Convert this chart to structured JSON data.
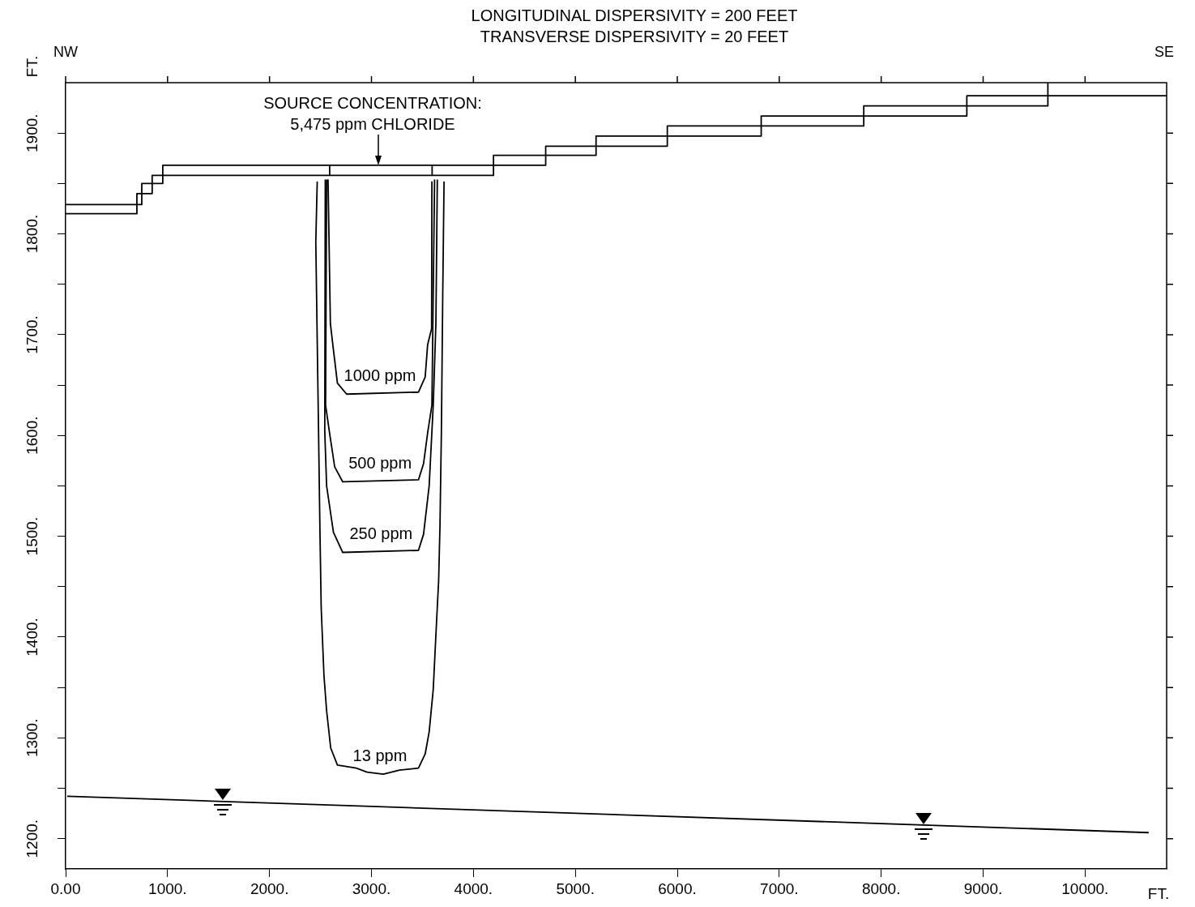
{
  "chart_data": {
    "type": "line",
    "title": "LONGITUDINAL DISPERSIVITY = 200 FEET",
    "subtitle": "TRANSVERSE DISPERSIVITY = 20 FEET",
    "xlabel": "FT.",
    "ylabel": "FT.",
    "xlim": [
      0,
      10800
    ],
    "ylim": [
      1170,
      1950
    ],
    "xticks": [
      {
        "value": 0,
        "label": "0.00"
      },
      {
        "value": 1000,
        "label": "1000."
      },
      {
        "value": 2000,
        "label": "2000."
      },
      {
        "value": 3000,
        "label": "3000."
      },
      {
        "value": 4000,
        "label": "4000."
      },
      {
        "value": 5000,
        "label": "5000."
      },
      {
        "value": 6000,
        "label": "6000."
      },
      {
        "value": 7000,
        "label": "7000."
      },
      {
        "value": 8000,
        "label": "8000."
      },
      {
        "value": 9000,
        "label": "9000."
      },
      {
        "value": 10000,
        "label": "10000."
      }
    ],
    "yticks": [
      {
        "value": 1200,
        "label": "1200."
      },
      {
        "value": 1250,
        "label": null
      },
      {
        "value": 1300,
        "label": "1300."
      },
      {
        "value": 1350,
        "label": null
      },
      {
        "value": 1400,
        "label": "1400."
      },
      {
        "value": 1450,
        "label": null
      },
      {
        "value": 1500,
        "label": "1500."
      },
      {
        "value": 1550,
        "label": null
      },
      {
        "value": 1600,
        "label": "1600."
      },
      {
        "value": 1650,
        "label": null
      },
      {
        "value": 1700,
        "label": "1700."
      },
      {
        "value": 1750,
        "label": null
      },
      {
        "value": 1800,
        "label": "1800."
      },
      {
        "value": 1850,
        "label": null
      },
      {
        "value": 1900,
        "label": "1900."
      }
    ],
    "grid": false,
    "legend": false,
    "marker": "none",
    "line_style": "solid",
    "series": [
      {
        "color": "#000000",
        "x": [
          0,
          747,
          747,
          953,
          953,
          4197,
          4197,
          4709,
          4709,
          5203,
          5203,
          5902,
          5902,
          6823,
          6823,
          7829,
          7829,
          8840,
          8840,
          9635,
          9635
        ],
        "values": [
          1829,
          1829,
          1850,
          1850,
          1868,
          1868,
          1878,
          1878,
          1887,
          1887,
          1897,
          1897,
          1907,
          1907,
          1917,
          1917,
          1927,
          1927,
          1937,
          1937,
          1950
        ]
      },
      {
        "color": "#000000",
        "x": [
          0,
          699,
          699,
          849,
          849,
          4197,
          4197,
          4709,
          4709,
          5203,
          5203,
          5902,
          5902,
          6823,
          6823,
          7829,
          7829,
          8840,
          8840,
          9635,
          9635,
          10800
        ],
        "values": [
          1820,
          1820,
          1840,
          1840,
          1858,
          1858,
          1868,
          1868,
          1878,
          1878,
          1887,
          1887,
          1897,
          1897,
          1907,
          1907,
          1917,
          1917,
          1927,
          1927,
          1937,
          1937
        ]
      },
      {
        "color": "#000000",
        "x": [
          2590,
          2590,
          3066,
          3595,
          3595
        ],
        "values": [
          1858,
          1868,
          null,
          1858,
          1868
        ]
      },
      {
        "name": "1000 ppm",
        "color": "#000000",
        "x": [
          2574,
          2597,
          2627,
          2666,
          2756,
          3461,
          3527,
          3551,
          3590,
          3593
        ],
        "values": [
          1854,
          1711,
          1685,
          1652,
          1641,
          1643,
          1658,
          1690,
          1706,
          1852
        ]
      },
      {
        "name": "500 ppm",
        "color": "#000000",
        "x": [
          2560,
          2550,
          2587,
          2639,
          2718,
          3461,
          3511,
          3553,
          3593,
          3619
        ],
        "values": [
          1854,
          1630,
          1604,
          1569,
          1554,
          1556,
          1572,
          1604,
          1630,
          1854
        ]
      },
      {
        "name": "250 ppm",
        "color": "#000000",
        "x": [
          2547,
          2542,
          2560,
          2627,
          2718,
          3461,
          3511,
          3566,
          3606,
          3632,
          3646
        ],
        "values": [
          1854,
          1604,
          1550,
          1504,
          1484,
          1486,
          1502,
          1550,
          1630,
          1711,
          1854
        ]
      },
      {
        "name": "13 ppm",
        "color": "#000000",
        "x": [
          2468,
          2454,
          2481,
          2494,
          2507,
          2534,
          2560,
          2600,
          2666,
          2851,
          2957,
          3116,
          3275,
          3461,
          3527,
          3566,
          3606,
          3632,
          3659,
          3672,
          3686,
          3699,
          3712
        ],
        "values": [
          1852,
          1792,
          1604,
          1510,
          1429,
          1362,
          1327,
          1290,
          1273,
          1270,
          1266,
          1264,
          1268,
          1270,
          1284,
          1306,
          1348,
          1402,
          1456,
          1510,
          1604,
          1738,
          1852
        ]
      },
      {
        "color": "#000000",
        "x": [
          16,
          3000,
          10624
        ],
        "values": [
          1242,
          1232,
          1206
        ]
      }
    ],
    "annotations": [
      "NW",
      "SE",
      "SOURCE CONCENTRATION:\n5,475 ppm CHLORIDE"
    ]
  }
}
